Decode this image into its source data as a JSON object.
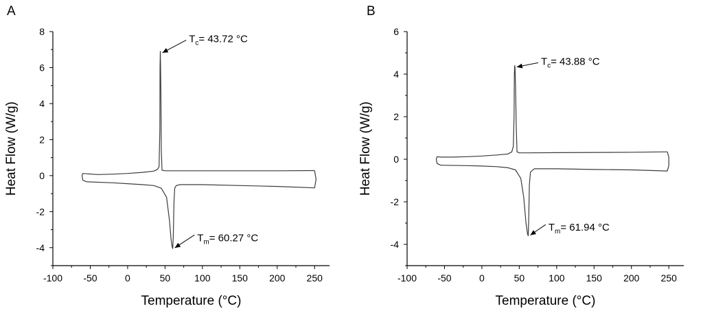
{
  "chart_data": [
    {
      "type": "line",
      "panel_label": "A",
      "xlabel": "Temperature (°C)",
      "ylabel": "Heat Flow (W/g)",
      "xlim": [
        -100,
        270
      ],
      "ylim": [
        -5,
        8
      ],
      "xticks": [
        -100,
        -50,
        0,
        50,
        100,
        150,
        200,
        250
      ],
      "xtick_labels": [
        "-100",
        "-50",
        "0",
        "50",
        "100",
        "150",
        "200",
        "250"
      ],
      "yticks": [
        -4,
        -2,
        0,
        2,
        4,
        6,
        8
      ],
      "ytick_labels": [
        "-4",
        "-2",
        "0",
        "2",
        "4",
        "6",
        "8"
      ],
      "grid": false,
      "legend": "none",
      "series": [
        {
          "values_desc": "cooling (upper) branch",
          "x": [
            250,
            200,
            150,
            100,
            60,
            50,
            46,
            45,
            44.5,
            44,
            43.72,
            43.3,
            43,
            42,
            40,
            35,
            20,
            0,
            -20,
            -40,
            -55,
            -60,
            -61,
            -60,
            -55
          ],
          "y": [
            0.28,
            0.27,
            0.27,
            0.27,
            0.27,
            0.27,
            0.3,
            1.5,
            4.5,
            6.3,
            6.9,
            6.0,
            2.5,
            0.5,
            0.35,
            0.25,
            0.18,
            0.12,
            0.08,
            0.06,
            0.1,
            0.12,
            0.0,
            -0.25,
            -0.34
          ]
        },
        {
          "values_desc": "heating (lower) branch",
          "x": [
            -55,
            -20,
            0,
            20,
            35,
            45,
            52,
            56,
            58,
            59.5,
            60.27,
            61,
            62,
            63,
            65,
            70,
            100,
            150,
            200,
            250,
            252,
            250
          ],
          "y": [
            -0.34,
            -0.4,
            -0.45,
            -0.5,
            -0.55,
            -0.7,
            -1.2,
            -2.5,
            -3.5,
            -3.95,
            -4.05,
            -3.4,
            -1.5,
            -0.7,
            -0.55,
            -0.5,
            -0.5,
            -0.55,
            -0.6,
            -0.68,
            -0.2,
            0.28
          ]
        }
      ],
      "annotations": [
        {
          "main": "T",
          "sub": "c",
          "text": "= 43.72 °C",
          "x": 43.72,
          "y": 6.9,
          "label_x": 82,
          "label_y": 7.6
        },
        {
          "main": "T",
          "sub": "m",
          "text": "= 60.27 °C",
          "x": 60.27,
          "y": -4.05,
          "label_x": 93,
          "label_y": -3.45
        }
      ]
    },
    {
      "type": "line",
      "panel_label": "B",
      "xlabel": "Temperature (°C)",
      "ylabel": "Heat Flow (W/g)",
      "xlim": [
        -100,
        270
      ],
      "ylim": [
        -5,
        6
      ],
      "xticks": [
        -100,
        -50,
        0,
        50,
        100,
        150,
        200,
        250
      ],
      "xtick_labels": [
        "-100",
        "-50",
        "0",
        "50",
        "100",
        "150",
        "200",
        "250"
      ],
      "yticks": [
        -4,
        -2,
        0,
        2,
        4,
        6
      ],
      "ytick_labels": [
        "-4",
        "-2",
        "0",
        "2",
        "4",
        "6"
      ],
      "grid": false,
      "legend": "none",
      "series": [
        {
          "values_desc": "cooling (upper) branch",
          "x": [
            248,
            200,
            150,
            100,
            60,
            50,
            47,
            46,
            45,
            44.3,
            43.88,
            43.4,
            43,
            42,
            40,
            35,
            20,
            0,
            -20,
            -40,
            -55,
            -60,
            -61,
            -60,
            -55
          ],
          "y": [
            0.35,
            0.33,
            0.32,
            0.31,
            0.3,
            0.3,
            0.35,
            1.5,
            3.5,
            4.3,
            4.4,
            4.0,
            2.0,
            0.6,
            0.35,
            0.25,
            0.2,
            0.15,
            0.12,
            0.1,
            0.1,
            0.12,
            0.0,
            -0.2,
            -0.28
          ]
        },
        {
          "values_desc": "heating (lower) branch",
          "x": [
            -55,
            -20,
            0,
            20,
            35,
            45,
            52,
            56,
            59,
            61,
            61.94,
            62.5,
            63.5,
            65,
            70,
            100,
            150,
            200,
            248,
            250,
            250,
            248
          ],
          "y": [
            -0.28,
            -0.3,
            -0.32,
            -0.35,
            -0.4,
            -0.5,
            -0.9,
            -1.8,
            -3.0,
            -3.5,
            -3.6,
            -3.0,
            -1.2,
            -0.6,
            -0.45,
            -0.45,
            -0.48,
            -0.5,
            -0.55,
            -0.3,
            0.1,
            0.35
          ]
        }
      ],
      "annotations": [
        {
          "main": "T",
          "sub": "c",
          "text": "= 43.88 °C",
          "x": 43.88,
          "y": 4.4,
          "label_x": 79,
          "label_y": 4.6
        },
        {
          "main": "T",
          "sub": "m",
          "text": "= 61.94 °C",
          "x": 61.94,
          "y": -3.6,
          "label_x": 89,
          "label_y": -3.2
        }
      ]
    }
  ]
}
